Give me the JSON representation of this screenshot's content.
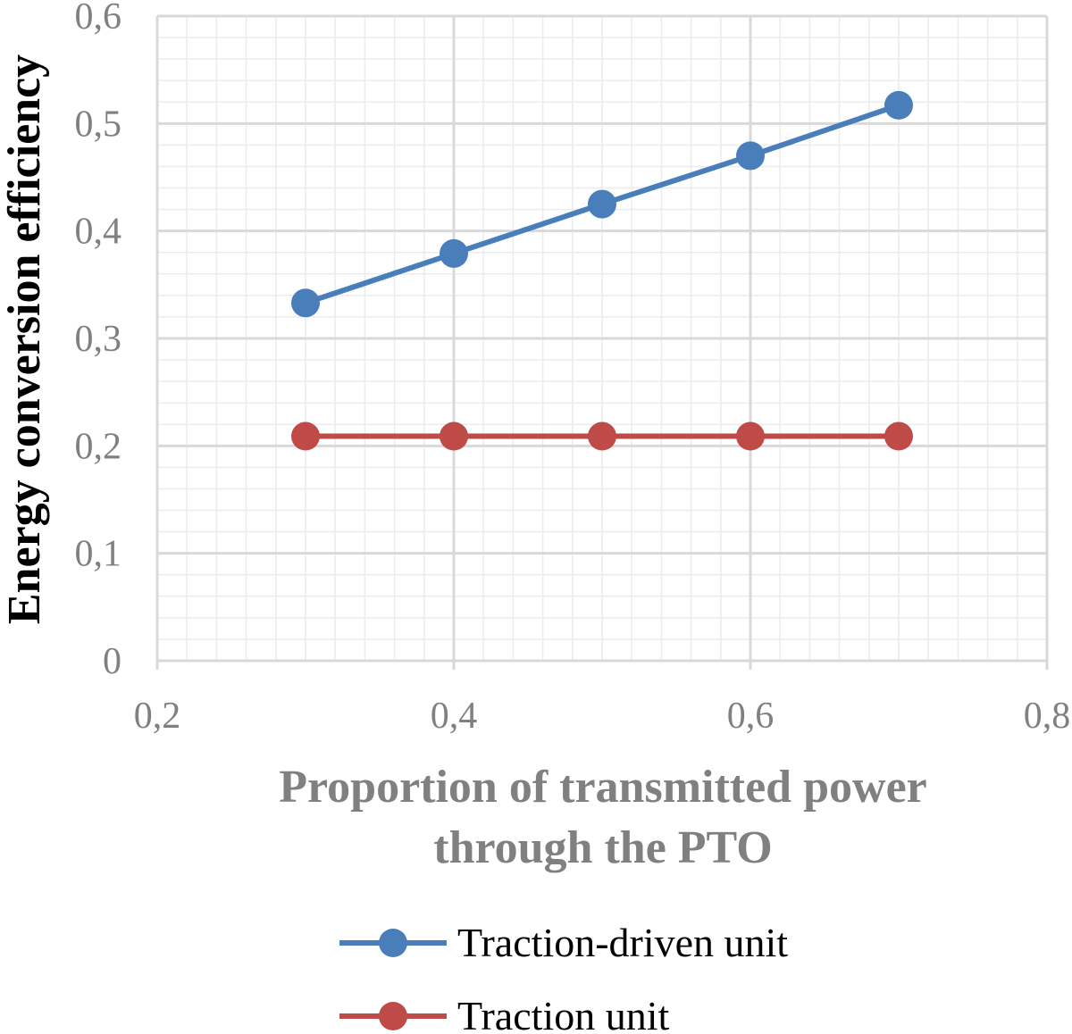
{
  "chart_data": {
    "type": "line",
    "title": "",
    "xlabel_lines": [
      "Proportion of transmitted power",
      "through the PTO"
    ],
    "ylabel": "Energy conversion efficiency",
    "xlim": [
      0.2,
      0.8
    ],
    "ylim": [
      0,
      0.6
    ],
    "x_major_ticks": [
      0.2,
      0.4,
      0.6,
      0.8
    ],
    "y_major_ticks": [
      0,
      0.1,
      0.2,
      0.3,
      0.4,
      0.5,
      0.6
    ],
    "x_tick_labels": [
      "0,2",
      "0,4",
      "0,6",
      "0,8"
    ],
    "y_tick_labels": [
      "0",
      "0,1",
      "0,2",
      "0,3",
      "0,4",
      "0,5",
      "0,6"
    ],
    "grid": true,
    "minor_grid": true,
    "legend_position": "bottom",
    "x": [
      0.3,
      0.4,
      0.5,
      0.6,
      0.7
    ],
    "series": [
      {
        "name": "Traction-driven unit",
        "color": "#4a7ebb",
        "values": [
          0.333,
          0.379,
          0.425,
          0.47,
          0.517
        ]
      },
      {
        "name": "Traction unit",
        "color": "#be4b48",
        "values": [
          0.209,
          0.209,
          0.209,
          0.209,
          0.209
        ]
      }
    ]
  }
}
